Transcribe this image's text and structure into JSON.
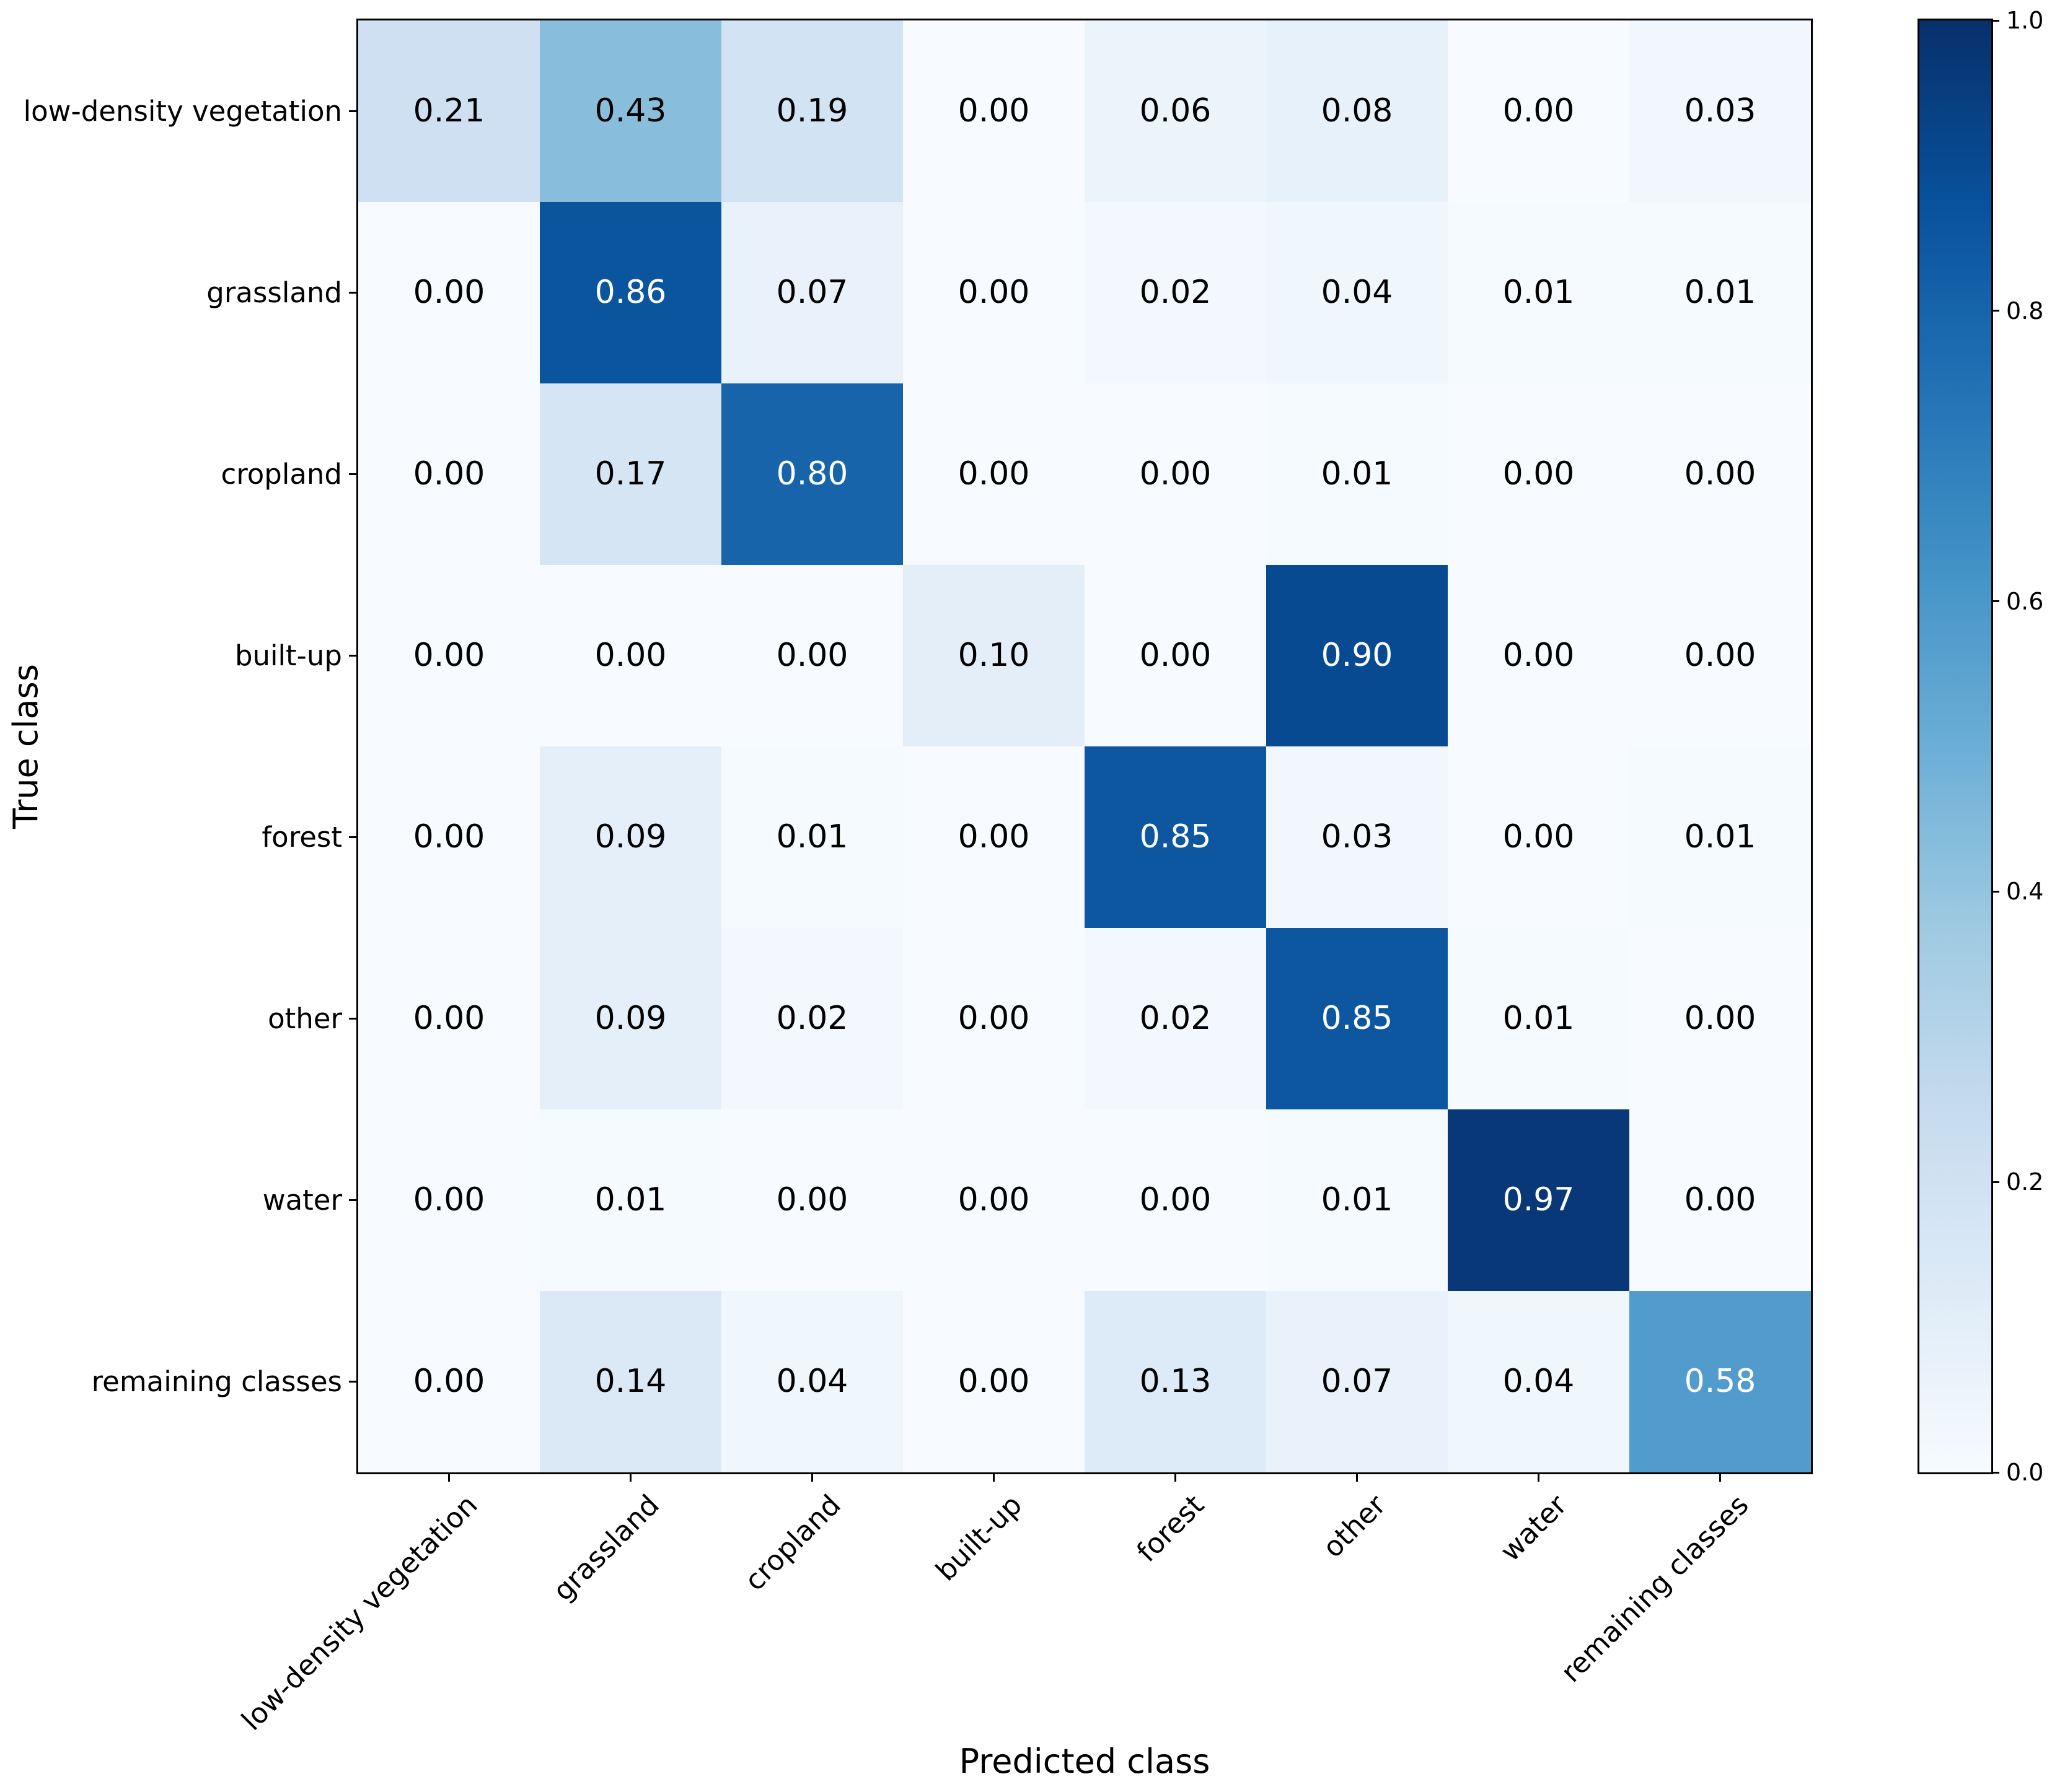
{
  "chart_data": {
    "type": "heatmap",
    "title": "",
    "xlabel": "Predicted class",
    "ylabel": "True class",
    "classes": [
      "low-density vegetation",
      "grassland",
      "cropland",
      "built-up",
      "forest",
      "other",
      "water",
      "remaining classes"
    ],
    "matrix": [
      [
        0.21,
        0.43,
        0.19,
        0.0,
        0.06,
        0.08,
        0.0,
        0.03
      ],
      [
        0.0,
        0.86,
        0.07,
        0.0,
        0.02,
        0.04,
        0.01,
        0.01
      ],
      [
        0.0,
        0.17,
        0.8,
        0.0,
        0.0,
        0.01,
        0.0,
        0.0
      ],
      [
        0.0,
        0.0,
        0.0,
        0.1,
        0.0,
        0.9,
        0.0,
        0.0
      ],
      [
        0.0,
        0.09,
        0.01,
        0.0,
        0.85,
        0.03,
        0.0,
        0.01
      ],
      [
        0.0,
        0.09,
        0.02,
        0.0,
        0.02,
        0.85,
        0.01,
        0.0
      ],
      [
        0.0,
        0.01,
        0.0,
        0.0,
        0.0,
        0.01,
        0.97,
        0.0
      ],
      [
        0.0,
        0.14,
        0.04,
        0.0,
        0.13,
        0.07,
        0.04,
        0.58
      ]
    ],
    "value_decimals": 2,
    "cell_text_colors": {
      "dark": "#000000",
      "light": "#ffffff",
      "light_threshold": 0.5
    },
    "colormap": {
      "name": "Blues",
      "anchors": [
        "#f7fbff",
        "#deebf7",
        "#c6dbef",
        "#9ecae1",
        "#6baed6",
        "#4292c6",
        "#2171b5",
        "#08519c",
        "#08306b"
      ]
    },
    "colorbar": {
      "min": 0.0,
      "max": 1.0,
      "tick_labels": [
        "0.0",
        "0.2",
        "0.4",
        "0.6",
        "0.8",
        "1.0"
      ],
      "position": "right"
    },
    "layout": {
      "grid": "off",
      "x_tick_rotation_deg": 45
    }
  }
}
